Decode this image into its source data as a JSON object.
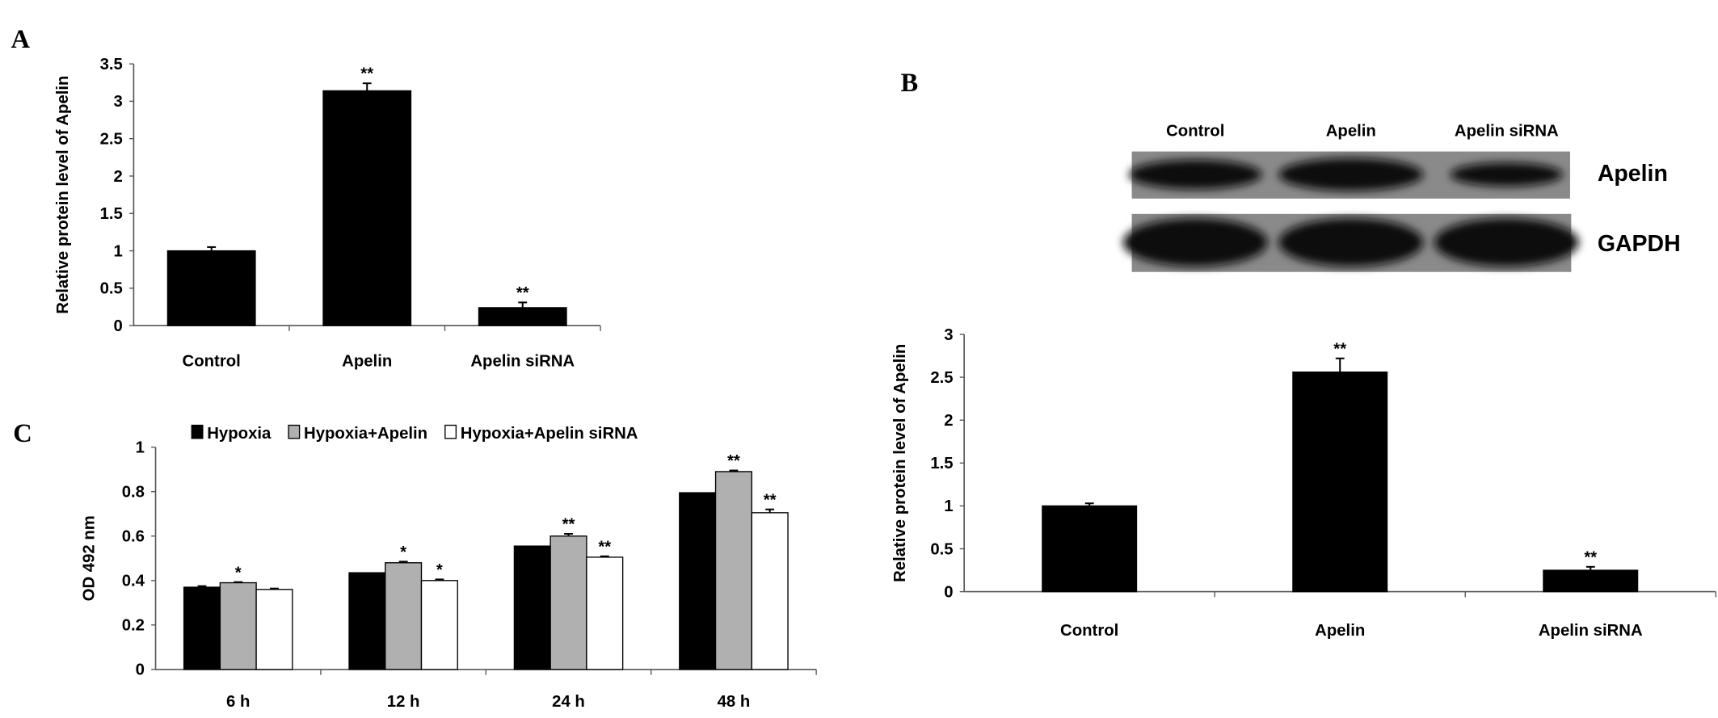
{
  "panels": {
    "a": "A",
    "b": "B",
    "c": "C"
  },
  "blot": {
    "lanes": [
      "Control",
      "Apelin",
      "Apelin siRNA"
    ],
    "rows": [
      "Apelin",
      "GAPDH"
    ],
    "band_intensity": {
      "Apelin": [
        0.8,
        1.0,
        0.45
      ],
      "GAPDH": [
        1.0,
        1.0,
        1.0
      ]
    }
  },
  "chart_data": [
    {
      "panel": "A",
      "type": "bar",
      "categories": [
        "Control",
        "Apelin",
        "Apelin siRNA"
      ],
      "values": [
        1.0,
        3.14,
        0.24
      ],
      "errors": [
        0.05,
        0.1,
        0.07
      ],
      "annotations": [
        "",
        "**",
        "**"
      ],
      "ylabel": "Relative protein level of Apelin",
      "ylim": [
        0,
        3.5
      ],
      "yticks": [
        "0",
        "0.5",
        "1",
        "1.5",
        "2",
        "2.5",
        "3",
        "3.5"
      ],
      "grid": false,
      "color": "#000000"
    },
    {
      "panel": "B",
      "type": "bar",
      "categories": [
        "Control",
        "Apelin",
        "Apelin siRNA"
      ],
      "values": [
        1.0,
        2.56,
        0.25
      ],
      "errors": [
        0.03,
        0.16,
        0.04
      ],
      "annotations": [
        "",
        "**",
        "**"
      ],
      "ylabel": "Relative protein level of Apelin",
      "ylim": [
        0,
        3
      ],
      "yticks": [
        "0",
        "0.5",
        "1",
        "1.5",
        "2",
        "2.5",
        "3"
      ],
      "grid": false,
      "color": "#000000"
    },
    {
      "panel": "C",
      "type": "bar",
      "categories": [
        "6 h",
        "12 h",
        "24 h",
        "48 h"
      ],
      "ylabel": "OD 492 nm",
      "ylim": [
        0,
        1
      ],
      "yticks": [
        "0",
        "0.2",
        "0.4",
        "0.6",
        "0.8",
        "1"
      ],
      "grid": false,
      "legend": "top",
      "series": [
        {
          "name": "Hypoxia",
          "color": "#000000",
          "values": [
            0.37,
            0.435,
            0.555,
            0.795
          ],
          "errors": [
            0.005,
            0,
            0,
            0
          ],
          "annotations": [
            "",
            "",
            "",
            ""
          ]
        },
        {
          "name": "Hypoxia+Apelin",
          "color": "#b0b0b0",
          "values": [
            0.39,
            0.48,
            0.6,
            0.89
          ],
          "errors": [
            0.003,
            0.005,
            0.01,
            0.005
          ],
          "annotations": [
            "*",
            "*",
            "**",
            "**"
          ]
        },
        {
          "name": "Hypoxia+Apelin siRNA",
          "color": "#ffffff",
          "values": [
            0.36,
            0.4,
            0.505,
            0.705
          ],
          "errors": [
            0.004,
            0.005,
            0.004,
            0.015
          ],
          "annotations": [
            "",
            "*",
            "**",
            "**"
          ]
        }
      ]
    }
  ]
}
